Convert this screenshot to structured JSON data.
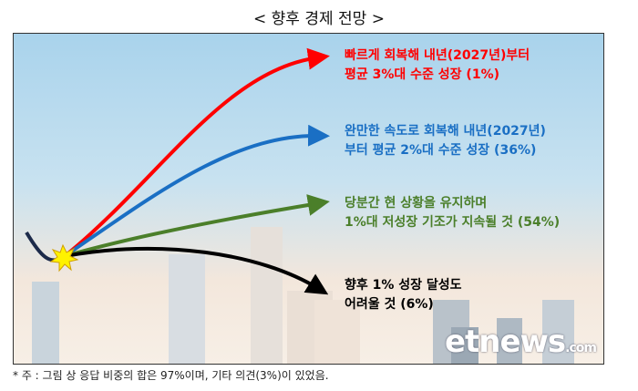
{
  "title": "< 향후 경제 전망 >",
  "scenarios": [
    {
      "line1": "빠르게 회복해 내년(2027년)부터",
      "line2": "평균 3%대 수준 성장 (1%)",
      "color": "#ff0000"
    },
    {
      "line1": "완만한 속도로 회복해 내년(2027년)",
      "line2": "부터 평균 2%대 수준 성장 (36%)",
      "color": "#1a6fc4"
    },
    {
      "line1": "당분간 현 상황을 유지하며",
      "line2": "1%대 저성장 기조가 지속될 것 (54%)",
      "color": "#4b7f2a"
    },
    {
      "line1": "향후 1% 성장 달성도",
      "line2": "어려울 것 (6%)",
      "color": "#000000"
    }
  ],
  "logo": "etnews",
  "logo_suffix": ".com",
  "note": "* 주 : 그림 상 응답 비중의 합은 97%이며, 기타 의견(3%)이 있었음."
}
